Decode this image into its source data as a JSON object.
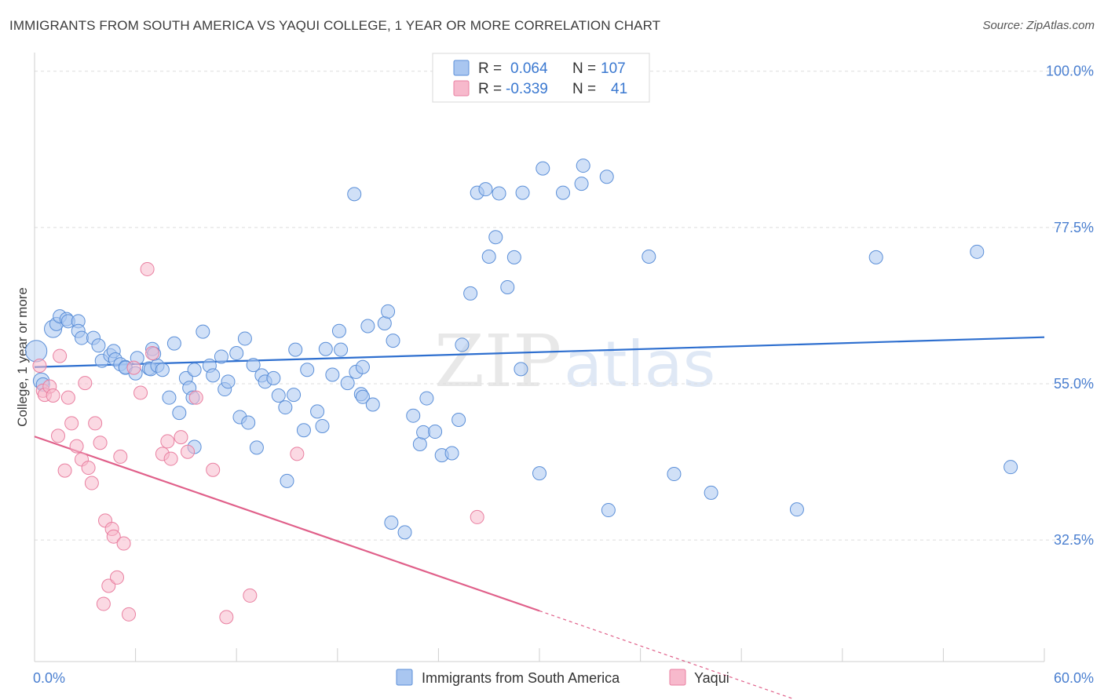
{
  "title": "IMMIGRANTS FROM SOUTH AMERICA VS YAQUI COLLEGE, 1 YEAR OR MORE CORRELATION CHART",
  "source": "Source: ZipAtlas.com",
  "watermark": {
    "zip": "ZIP",
    "atlas": "atlas"
  },
  "legend_top": [
    {
      "r_label": "R =",
      "r_value": "0.064",
      "n_label": "N =",
      "n_value": "107",
      "color": "#a9c6f0",
      "stroke": "#5b8fd8"
    },
    {
      "r_label": "R =",
      "r_value": "-0.339",
      "n_label": "N =",
      "n_value": "41",
      "color": "#f7b9cc",
      "stroke": "#e97fa0"
    }
  ],
  "chart_data": {
    "type": "scatter",
    "xlabel": "",
    "ylabel": "College, 1 year or more",
    "xlim": [
      0,
      60
    ],
    "ylim": [
      15,
      102
    ],
    "x_tick_labels": [
      {
        "value": 0,
        "label": "0.0%"
      },
      {
        "value": 60,
        "label": "60.0%"
      }
    ],
    "y_tick_labels": [
      {
        "value": 100,
        "label": "100.0%"
      },
      {
        "value": 77.5,
        "label": "77.5%"
      },
      {
        "value": 55,
        "label": "55.0%"
      },
      {
        "value": 32.5,
        "label": "32.5%"
      }
    ],
    "grid": true,
    "series": [
      {
        "name": "Immigrants from South America",
        "color": "#a9c6f0",
        "stroke": "#5b8fd8",
        "trend_color": "#2e6fcf",
        "trend": {
          "x0": 0,
          "y0": 57.4,
          "x1": 60,
          "y1": 61.7
        },
        "points": [
          [
            0.1,
            59.7,
            1.6
          ],
          [
            0.4,
            55.4,
            1.2
          ],
          [
            0.5,
            54.9,
            1.0
          ],
          [
            1.1,
            62.9,
            1.3
          ],
          [
            1.3,
            63.6,
            1.0
          ],
          [
            1.5,
            64.7,
            1.0
          ],
          [
            1.9,
            64.3,
            1.0
          ],
          [
            2.0,
            64.0,
            1.0
          ],
          [
            2.6,
            64.0,
            1.0
          ],
          [
            2.6,
            62.6,
            1.0
          ],
          [
            2.8,
            61.6,
            1.0
          ],
          [
            3.5,
            61.6,
            1.0
          ],
          [
            3.8,
            60.5,
            1.0
          ],
          [
            4.0,
            58.3,
            1.0
          ],
          [
            4.5,
            59.1,
            1.0
          ],
          [
            4.7,
            59.7,
            1.0
          ],
          [
            4.8,
            58.5,
            1.0
          ],
          [
            5.1,
            57.8,
            1.0
          ],
          [
            5.4,
            57.4,
            1.0
          ],
          [
            5.4,
            57.3,
            1.0
          ],
          [
            6.0,
            56.5,
            1.0
          ],
          [
            6.1,
            58.7,
            1.0
          ],
          [
            6.8,
            57.2,
            1.0
          ],
          [
            6.9,
            57.1,
            1.0
          ],
          [
            7.0,
            60.0,
            1.0
          ],
          [
            7.1,
            59.3,
            1.0
          ],
          [
            7.3,
            57.6,
            1.0
          ],
          [
            7.6,
            57.0,
            1.0
          ],
          [
            8.0,
            53.0,
            1.0
          ],
          [
            8.3,
            60.8,
            1.0
          ],
          [
            8.6,
            50.8,
            1.0
          ],
          [
            9.0,
            55.8,
            1.0
          ],
          [
            9.2,
            54.4,
            1.0
          ],
          [
            9.4,
            53.0,
            1.0
          ],
          [
            9.5,
            57.0,
            1.0
          ],
          [
            9.5,
            45.9,
            1.0
          ],
          [
            10.0,
            62.5,
            1.0
          ],
          [
            10.4,
            57.6,
            1.0
          ],
          [
            10.6,
            56.2,
            1.0
          ],
          [
            11.1,
            58.9,
            1.0
          ],
          [
            11.3,
            54.2,
            1.0
          ],
          [
            11.5,
            55.3,
            1.0
          ],
          [
            12.0,
            59.4,
            1.0
          ],
          [
            12.2,
            50.2,
            1.0
          ],
          [
            12.5,
            61.5,
            1.0
          ],
          [
            12.7,
            49.4,
            1.0
          ],
          [
            13.0,
            57.7,
            1.0
          ],
          [
            13.2,
            45.8,
            1.0
          ],
          [
            13.5,
            56.2,
            1.0
          ],
          [
            13.7,
            55.3,
            1.0
          ],
          [
            14.2,
            55.8,
            1.0
          ],
          [
            14.5,
            53.3,
            1.0
          ],
          [
            14.9,
            51.6,
            1.0
          ],
          [
            15.0,
            41.0,
            1.0
          ],
          [
            15.4,
            53.4,
            1.0
          ],
          [
            15.5,
            59.9,
            1.0
          ],
          [
            16.0,
            48.3,
            1.0
          ],
          [
            16.2,
            57.0,
            1.0
          ],
          [
            16.8,
            51.0,
            1.0
          ],
          [
            17.1,
            48.9,
            1.0
          ],
          [
            17.3,
            60.0,
            1.0
          ],
          [
            17.7,
            56.3,
            1.0
          ],
          [
            18.1,
            62.6,
            1.0
          ],
          [
            18.2,
            59.9,
            1.0
          ],
          [
            18.6,
            55.1,
            1.0
          ],
          [
            19.0,
            82.3,
            1.0
          ],
          [
            19.1,
            56.7,
            1.0
          ],
          [
            19.4,
            53.5,
            1.0
          ],
          [
            19.5,
            53.1,
            1.0
          ],
          [
            19.5,
            57.4,
            1.0
          ],
          [
            19.8,
            63.3,
            1.0
          ],
          [
            20.1,
            52.0,
            1.0
          ],
          [
            20.8,
            63.7,
            1.0
          ],
          [
            21.0,
            65.4,
            1.0
          ],
          [
            21.3,
            61.2,
            1.0
          ],
          [
            21.2,
            35.0,
            1.0
          ],
          [
            22.0,
            33.6,
            1.0
          ],
          [
            22.5,
            50.4,
            1.0
          ],
          [
            22.9,
            46.3,
            1.0
          ],
          [
            23.1,
            48.0,
            1.0
          ],
          [
            23.3,
            52.9,
            1.0
          ],
          [
            23.8,
            48.1,
            1.0
          ],
          [
            24.2,
            44.7,
            1.0
          ],
          [
            24.8,
            45.0,
            1.0
          ],
          [
            25.2,
            49.8,
            1.0
          ],
          [
            25.4,
            60.6,
            1.0
          ],
          [
            25.9,
            68.0,
            1.0
          ],
          [
            26.3,
            82.5,
            1.0
          ],
          [
            26.8,
            83.0,
            1.0
          ],
          [
            27.0,
            73.3,
            1.0
          ],
          [
            27.4,
            76.1,
            1.0
          ],
          [
            27.6,
            82.4,
            1.0
          ],
          [
            28.1,
            68.9,
            1.0
          ],
          [
            28.5,
            73.2,
            1.0
          ],
          [
            28.9,
            57.1,
            1.0
          ],
          [
            29.0,
            82.5,
            1.0
          ],
          [
            30.0,
            42.1,
            1.0
          ],
          [
            30.2,
            86.0,
            1.0
          ],
          [
            31.4,
            82.5,
            1.0
          ],
          [
            32.5,
            83.8,
            1.0
          ],
          [
            32.6,
            86.4,
            1.0
          ],
          [
            34.0,
            84.8,
            1.0
          ],
          [
            34.1,
            36.8,
            1.0
          ],
          [
            36.5,
            73.3,
            1.0
          ],
          [
            38.0,
            42.0,
            1.0
          ],
          [
            40.2,
            39.3,
            1.0
          ],
          [
            45.3,
            36.9,
            1.0
          ],
          [
            50.0,
            73.2,
            1.0
          ],
          [
            56.0,
            74.0,
            1.0
          ],
          [
            58.0,
            43.0,
            1.0
          ]
        ]
      },
      {
        "name": "Yaqui",
        "color": "#f7b9cc",
        "stroke": "#e97fa0",
        "trend_color": "#e0608a",
        "trend": {
          "x0": 0,
          "y0": 47.4,
          "x1": 30,
          "y1": 22.3
        },
        "trend_dashed": {
          "x0": 30,
          "y0": 22.3,
          "x1": 45,
          "y1": 9.7
        },
        "points": [
          [
            0.3,
            57.6,
            1.0
          ],
          [
            0.5,
            54.0,
            1.0
          ],
          [
            0.6,
            53.4,
            1.0
          ],
          [
            0.9,
            54.6,
            1.0
          ],
          [
            1.1,
            53.3,
            1.0
          ],
          [
            1.4,
            47.5,
            1.0
          ],
          [
            1.5,
            59.0,
            1.0
          ],
          [
            1.8,
            42.5,
            1.0
          ],
          [
            2.0,
            53.0,
            1.0
          ],
          [
            2.2,
            49.3,
            1.0
          ],
          [
            2.5,
            46.0,
            1.0
          ],
          [
            2.8,
            44.1,
            1.0
          ],
          [
            3.0,
            55.1,
            1.0
          ],
          [
            3.2,
            42.9,
            1.0
          ],
          [
            3.4,
            40.7,
            1.0
          ],
          [
            3.6,
            49.3,
            1.0
          ],
          [
            3.9,
            46.5,
            1.0
          ],
          [
            4.1,
            23.3,
            1.0
          ],
          [
            4.2,
            35.3,
            1.0
          ],
          [
            4.4,
            25.9,
            1.0
          ],
          [
            4.6,
            34.1,
            1.0
          ],
          [
            4.7,
            33.0,
            1.0
          ],
          [
            4.9,
            27.1,
            1.0
          ],
          [
            5.1,
            44.5,
            1.0
          ],
          [
            5.3,
            32.0,
            1.0
          ],
          [
            5.6,
            21.8,
            1.0
          ],
          [
            5.9,
            57.3,
            1.0
          ],
          [
            6.3,
            53.7,
            1.0
          ],
          [
            6.7,
            71.5,
            1.0
          ],
          [
            7.0,
            59.4,
            1.0
          ],
          [
            7.6,
            44.9,
            1.0
          ],
          [
            7.9,
            46.7,
            1.0
          ],
          [
            8.1,
            44.2,
            1.0
          ],
          [
            8.7,
            47.3,
            1.0
          ],
          [
            9.1,
            45.2,
            1.0
          ],
          [
            9.6,
            53.0,
            1.0
          ],
          [
            10.6,
            42.6,
            1.0
          ],
          [
            11.4,
            21.4,
            1.0
          ],
          [
            12.8,
            24.5,
            1.0
          ],
          [
            15.6,
            44.9,
            1.0
          ],
          [
            26.3,
            35.8,
            1.0
          ]
        ]
      }
    ]
  },
  "legend_bottom": [
    {
      "label": "Immigrants from South America",
      "color": "#a9c6f0",
      "stroke": "#5b8fd8"
    },
    {
      "label": "Yaqui",
      "color": "#f7b9cc",
      "stroke": "#e97fa0"
    }
  ]
}
